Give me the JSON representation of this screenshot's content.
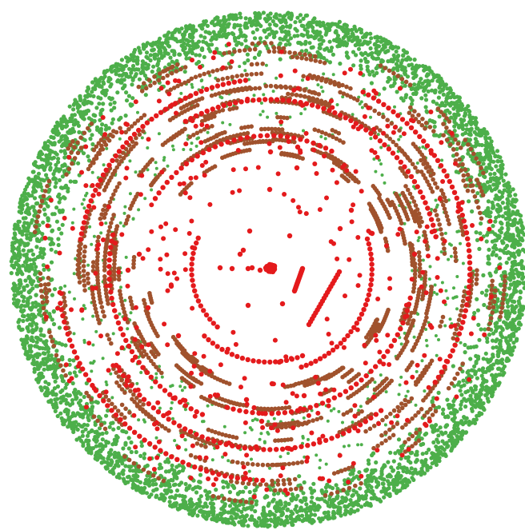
{
  "chart_data": {
    "type": "scatter",
    "layout": "radial",
    "background": "#ffffff",
    "legend": "none",
    "grid": false,
    "series": [
      {
        "color": "#e41a1c",
        "radius_range": [
          0.0,
          0.72
        ]
      },
      {
        "color": "#a0522d",
        "radius_range": [
          0.38,
          0.95
        ]
      },
      {
        "color": "#4daf4a",
        "radius_range": [
          0.7,
          1.0
        ]
      }
    ]
  }
}
